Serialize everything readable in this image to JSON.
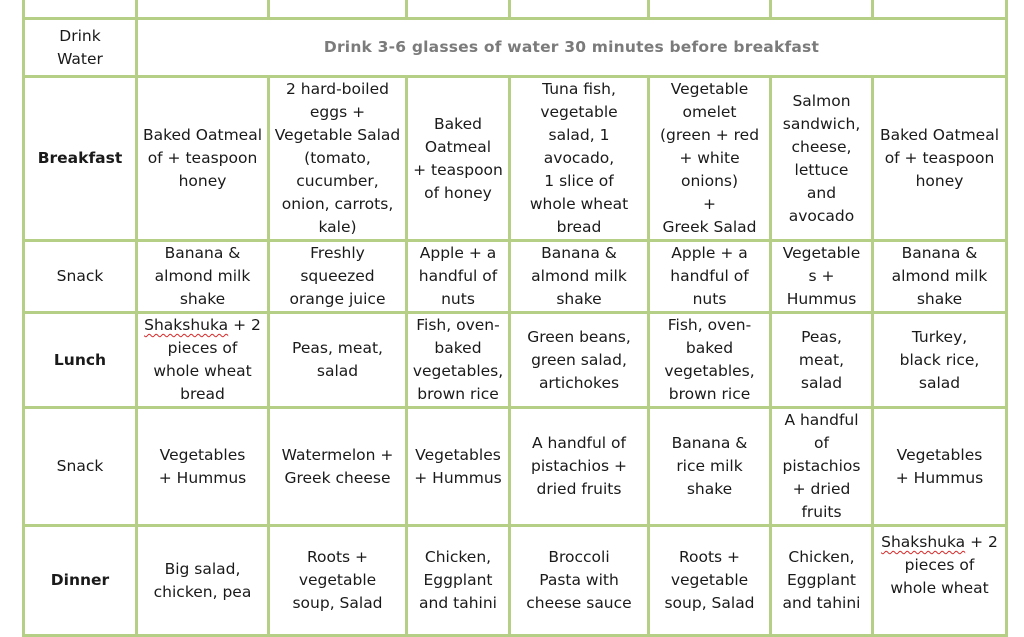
{
  "water": {
    "label_line1": "Drink",
    "label_line2": "Water",
    "text": "Drink 3-6 glasses of water 30 minutes before breakfast"
  },
  "rows": {
    "breakfast": {
      "label": "Breakfast",
      "cells": [
        [
          "Baked Oatmeal",
          "of + teaspoon",
          "honey"
        ],
        [
          "2 hard-boiled",
          "eggs +",
          "Vegetable Salad",
          "(tomato,",
          "cucumber,",
          "onion, carrots,",
          "kale)"
        ],
        [
          "Baked",
          "Oatmeal",
          "+ teaspoon",
          "of honey"
        ],
        [
          "Tuna fish,",
          "vegetable",
          "salad, 1",
          "avocado,",
          "1 slice of",
          "whole wheat",
          "bread"
        ],
        [
          "Vegetable",
          "omelet",
          "(green + red",
          "+ white",
          "onions)",
          "+",
          "Greek Salad"
        ],
        [
          "Salmon",
          "sandwich,",
          "cheese,",
          "lettuce",
          "and",
          "avocado"
        ],
        [
          "Baked Oatmeal",
          "of + teaspoon",
          "honey"
        ]
      ]
    },
    "snack1": {
      "label": "Snack",
      "cells": [
        [
          "Banana &",
          "almond milk",
          "shake"
        ],
        [
          "Freshly",
          "squeezed",
          "orange juice"
        ],
        [
          "Apple + a",
          "handful of",
          "nuts"
        ],
        [
          "Banana &",
          "almond milk",
          "shake"
        ],
        [
          "Apple + a",
          "handful of",
          "nuts"
        ],
        [
          "Vegetable",
          "s +",
          "Hummus"
        ],
        [
          "Banana &",
          "almond milk",
          "shake"
        ]
      ]
    },
    "lunch": {
      "label": "Lunch",
      "shakshuka_word": "Shakshuka",
      "cell1_rest": [
        " + 2",
        "pieces of",
        "whole wheat",
        "bread"
      ],
      "cells": [
        [],
        [
          "Peas, meat,",
          "salad"
        ],
        [
          "Fish, oven-",
          "baked",
          "vegetables,",
          "brown rice"
        ],
        [
          "Green beans,",
          "green salad,",
          "artichokes"
        ],
        [
          "Fish, oven-",
          "baked",
          "vegetables,",
          "brown rice"
        ],
        [
          "Peas,",
          "meat,",
          "salad"
        ],
        [
          "Turkey,",
          "black rice,",
          "salad"
        ]
      ]
    },
    "snack2": {
      "label": "Snack",
      "cells": [
        [
          "Vegetables",
          "+ Hummus"
        ],
        [
          "Watermelon +",
          "Greek cheese"
        ],
        [
          "Vegetables",
          "+ Hummus"
        ],
        [
          "A handful of",
          "pistachios +",
          "dried fruits"
        ],
        [
          "Banana &",
          "rice milk",
          "shake"
        ],
        [
          "A handful",
          "of",
          "pistachios",
          "+ dried",
          "fruits"
        ],
        [
          "Vegetables",
          "+ Hummus"
        ]
      ]
    },
    "dinner": {
      "label": "Dinner",
      "shakshuka_word": "Shakshuka",
      "cell7_rest": [
        " + 2",
        "pieces of",
        "whole wheat"
      ],
      "cells": [
        [
          "Big salad,",
          "chicken, pea"
        ],
        [
          "Roots +",
          "vegetable",
          "soup, Salad"
        ],
        [
          "Chicken,",
          "Eggplant",
          "and tahini"
        ],
        [
          "Broccoli",
          "Pasta with",
          "cheese sauce"
        ],
        [
          "Roots +",
          "vegetable",
          "soup, Salad"
        ],
        [
          "Chicken,",
          "Eggplant",
          "and tahini"
        ],
        []
      ]
    }
  }
}
